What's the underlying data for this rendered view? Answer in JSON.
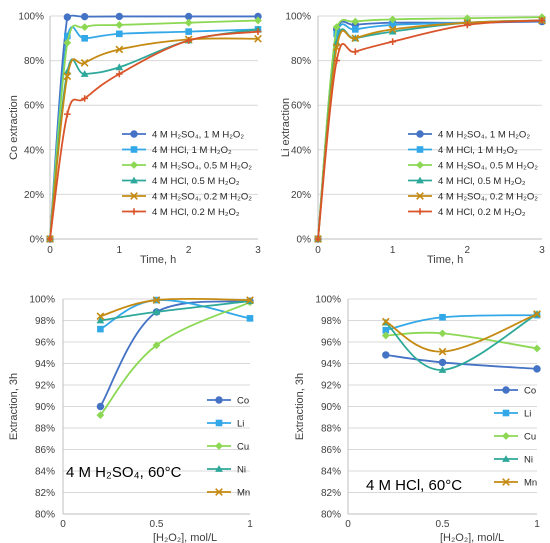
{
  "chart_data": [
    {
      "id": "co-time",
      "type": "line",
      "xlabel": "Time, h",
      "ylabel": "Co extraction",
      "xlim": [
        0,
        3
      ],
      "ylim": [
        0,
        100
      ],
      "xticks": [
        "0",
        "1",
        "2",
        "3"
      ],
      "yticks": [
        "0%",
        "20%",
        "40%",
        "60%",
        "80%",
        "100%"
      ],
      "legend": "inside-lower-right",
      "series": [
        {
          "name": "4 M H₂SO₄, 1 M H₂O₂",
          "color": "#4472C4",
          "marker": "circle",
          "x": [
            0,
            0.25,
            0.5,
            1,
            2,
            3
          ],
          "y": [
            0,
            99.5,
            99.7,
            99.8,
            99.8,
            99.8
          ]
        },
        {
          "name": "4 M HCl, 1 M H₂O₂",
          "color": "#33A8E8",
          "marker": "square",
          "x": [
            0,
            0.25,
            0.5,
            1,
            2,
            3
          ],
          "y": [
            0,
            91,
            90,
            92,
            93,
            94
          ]
        },
        {
          "name": "4 M H₂SO₄, 0.5 M H₂O₂",
          "color": "#8CD854",
          "marker": "diamond",
          "x": [
            0,
            0.25,
            0.5,
            1,
            2,
            3
          ],
          "y": [
            0,
            88,
            95,
            96,
            97,
            98
          ]
        },
        {
          "name": "4 M HCl, 0.5 M H₂O₂",
          "color": "#2EA89A",
          "marker": "triangle",
          "x": [
            0,
            0.25,
            0.5,
            1,
            2,
            3
          ],
          "y": [
            0,
            75,
            74,
            77,
            89,
            94
          ]
        },
        {
          "name": "4 M H₂SO₄, 0.2 M H₂O₂",
          "color": "#C58A12",
          "marker": "x",
          "x": [
            0,
            0.25,
            0.5,
            1,
            2,
            3
          ],
          "y": [
            0,
            73,
            79,
            85,
            89.5,
            89.8
          ]
        },
        {
          "name": "4 M HCl, 0.2 M H₂O₂",
          "color": "#D9542A",
          "marker": "plus",
          "x": [
            0,
            0.25,
            0.5,
            1,
            2,
            3
          ],
          "y": [
            0,
            56,
            63,
            74,
            89,
            93
          ]
        }
      ]
    },
    {
      "id": "li-time",
      "type": "line",
      "xlabel": "Time, h",
      "ylabel": "Li extraction",
      "xlim": [
        0,
        3
      ],
      "ylim": [
        0,
        100
      ],
      "xticks": [
        "0",
        "1",
        "2",
        "3"
      ],
      "yticks": [
        "0%",
        "20%",
        "40%",
        "60%",
        "80%",
        "100%"
      ],
      "legend": "inside-lower-right",
      "series": [
        {
          "name": "4 M H₂SO₄, 1 M H₂O₂",
          "color": "#4472C4",
          "marker": "circle",
          "x": [
            0,
            0.25,
            0.5,
            1,
            2,
            3
          ],
          "y": [
            0,
            94,
            96,
            97,
            97,
            97.5
          ]
        },
        {
          "name": "4 M HCl, 1 M H₂O₂",
          "color": "#33A8E8",
          "marker": "square",
          "x": [
            0,
            0.25,
            0.5,
            1,
            2,
            3
          ],
          "y": [
            0,
            92,
            94,
            96,
            97,
            98
          ]
        },
        {
          "name": "4 M H₂SO₄, 0.5 M H₂O₂",
          "color": "#8CD854",
          "marker": "diamond",
          "x": [
            0,
            0.25,
            0.5,
            1,
            2,
            3
          ],
          "y": [
            0,
            95,
            97.5,
            98.5,
            99,
            99.5
          ]
        },
        {
          "name": "4 M HCl, 0.5 M H₂O₂",
          "color": "#2EA89A",
          "marker": "triangle",
          "x": [
            0,
            0.25,
            0.5,
            1,
            2,
            3
          ],
          "y": [
            0,
            88,
            90,
            93,
            97,
            98
          ]
        },
        {
          "name": "4 M H₂SO₄, 0.2 M H₂O₂",
          "color": "#C58A12",
          "marker": "x",
          "x": [
            0,
            0.25,
            0.5,
            1,
            2,
            3
          ],
          "y": [
            0,
            86,
            90,
            94,
            97,
            98
          ]
        },
        {
          "name": "4 M HCl, 0.2 M H₂O₂",
          "color": "#D9542A",
          "marker": "plus",
          "x": [
            0,
            0.25,
            0.5,
            1,
            2,
            3
          ],
          "y": [
            0,
            80,
            84,
            88.5,
            96,
            98
          ]
        }
      ]
    },
    {
      "id": "h2so4-conc",
      "type": "line",
      "xlabel": "[H₂O₂], mol/L",
      "ylabel": "Extraction, 3h",
      "xlim": [
        0,
        1
      ],
      "ylim": [
        80,
        100
      ],
      "xticks": [
        "0",
        "0.5",
        "1"
      ],
      "yticks": [
        "80%",
        "82%",
        "84%",
        "86%",
        "88%",
        "90%",
        "92%",
        "94%",
        "96%",
        "98%",
        "100%"
      ],
      "annotation": "4 M H₂SO₄, 60°C",
      "legend": "inside-lower-right",
      "series": [
        {
          "name": "Co",
          "color": "#4472C4",
          "marker": "circle",
          "x": [
            0.2,
            0.5,
            1
          ],
          "y": [
            90.0,
            98.8,
            99.8
          ]
        },
        {
          "name": "Li",
          "color": "#33A8E8",
          "marker": "square",
          "x": [
            0.2,
            0.5,
            1
          ],
          "y": [
            97.2,
            99.9,
            98.2
          ]
        },
        {
          "name": "Cu",
          "color": "#8CD854",
          "marker": "diamond",
          "x": [
            0.2,
            0.5,
            1
          ],
          "y": [
            89.2,
            95.7,
            99.7
          ]
        },
        {
          "name": "Ni",
          "color": "#2EA89A",
          "marker": "triangle",
          "x": [
            0.2,
            0.5,
            1
          ],
          "y": [
            98.0,
            98.8,
            99.8
          ]
        },
        {
          "name": "Mn",
          "color": "#C58A12",
          "marker": "x",
          "x": [
            0.2,
            0.5,
            1
          ],
          "y": [
            98.4,
            99.9,
            99.9
          ]
        }
      ]
    },
    {
      "id": "hcl-conc",
      "type": "line",
      "xlabel": "[H₂O₂], mol/L",
      "ylabel": "Extraction, 3h",
      "xlim": [
        0,
        1
      ],
      "ylim": [
        80,
        100
      ],
      "xticks": [
        "0",
        "0.5",
        "1"
      ],
      "yticks": [
        "80%",
        "82%",
        "84%",
        "86%",
        "88%",
        "90%",
        "92%",
        "94%",
        "96%",
        "98%",
        "100%"
      ],
      "annotation": "4 M HCl, 60°C",
      "legend": "inside-lower-right",
      "series": [
        {
          "name": "Co",
          "color": "#4472C4",
          "marker": "circle",
          "x": [
            0.2,
            0.5,
            1
          ],
          "y": [
            94.8,
            94.1,
            93.5
          ]
        },
        {
          "name": "Li",
          "color": "#33A8E8",
          "marker": "square",
          "x": [
            0.2,
            0.5,
            1
          ],
          "y": [
            97.1,
            98.3,
            98.5
          ]
        },
        {
          "name": "Cu",
          "color": "#8CD854",
          "marker": "diamond",
          "x": [
            0.2,
            0.5,
            1
          ],
          "y": [
            96.6,
            96.8,
            95.4
          ]
        },
        {
          "name": "Ni",
          "color": "#2EA89A",
          "marker": "triangle",
          "x": [
            0.2,
            0.5,
            1
          ],
          "y": [
            97.8,
            93.4,
            98.6
          ]
        },
        {
          "name": "Mn",
          "color": "#C58A12",
          "marker": "x",
          "x": [
            0.2,
            0.5,
            1
          ],
          "y": [
            97.9,
            95.1,
            98.6
          ]
        }
      ]
    }
  ]
}
